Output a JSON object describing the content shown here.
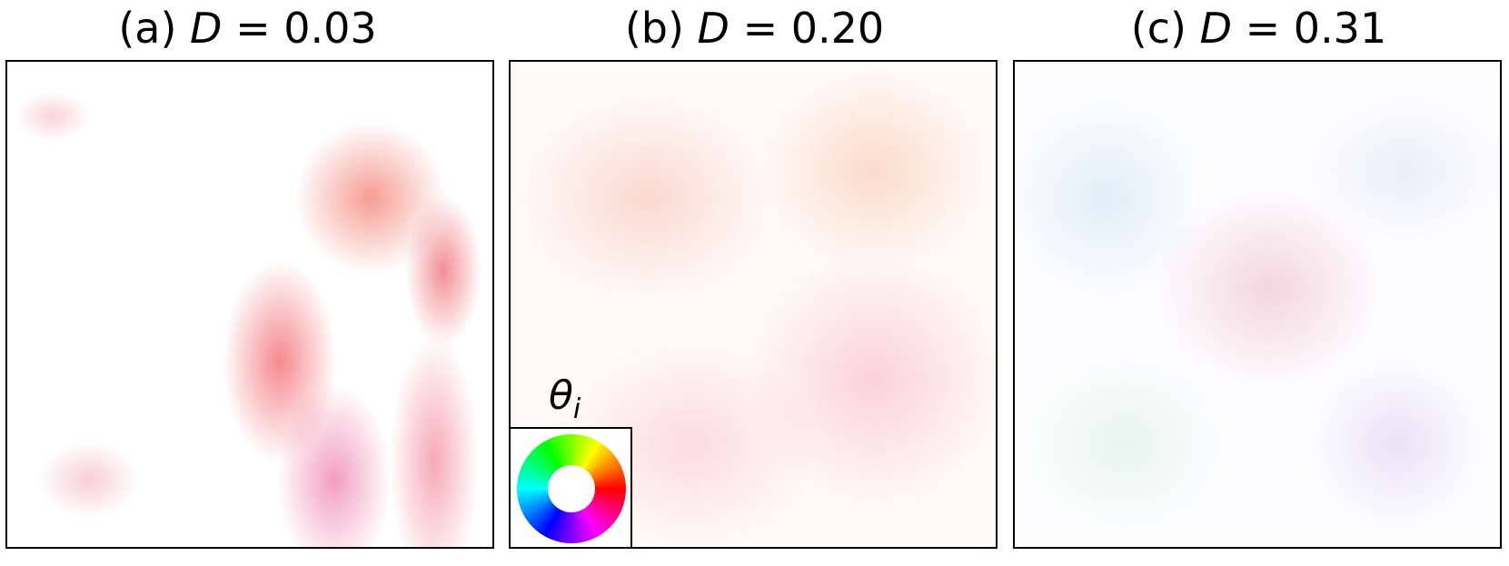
{
  "panels": [
    {
      "label": "(a)",
      "symbol": "D",
      "relation": "=",
      "value": "0.03"
    },
    {
      "label": "(b)",
      "symbol": "D",
      "relation": "=",
      "value": "0.20"
    },
    {
      "label": "(c)",
      "symbol": "D",
      "relation": "=",
      "value": "0.31"
    }
  ],
  "inset": {
    "symbol": "θ",
    "subscript": "i"
  }
}
